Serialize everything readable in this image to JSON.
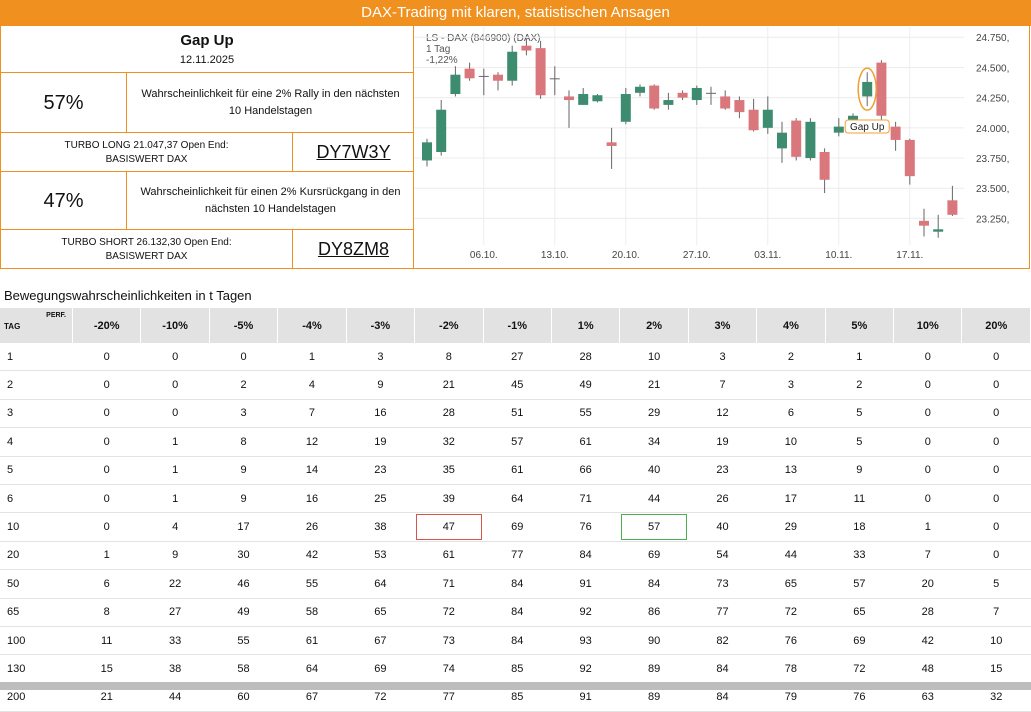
{
  "banner": "DAX-Trading mit klaren, statistischen Ansagen",
  "signal": {
    "title": "Gap Up",
    "date": "12.11.2025",
    "long": {
      "probability": "57%",
      "text": [
        "Wahrscheinlichkeit für eine 2% Rally in den nächsten",
        "10 Handelstagen"
      ],
      "product": [
        "TURBO LONG 21.047,37 Open End:",
        "BASISWERT DAX"
      ],
      "wkn": "DY7W3Y"
    },
    "short": {
      "probability": "47%",
      "text": [
        "Wahrscheinlichkeit für einen 2% Kursrückgang in den",
        "nächsten 10 Handelstagen"
      ],
      "product": [
        "TURBO SHORT 26.132,30 Open End:",
        "BASISWERT DAX"
      ],
      "wkn": "DY8ZM8"
    }
  },
  "chart_data": {
    "type": "candlestick",
    "title": "LS - DAX (846900) (DAX)",
    "subtitle": "1 Tag",
    "change": "-1,22%",
    "annotation": "Gap Up",
    "categories": [
      null,
      null,
      null,
      null,
      "06.10.",
      null,
      null,
      null,
      null,
      "13.10.",
      null,
      null,
      null,
      null,
      "20.10.",
      null,
      null,
      null,
      null,
      "27.10.",
      null,
      null,
      null,
      null,
      "03.11.",
      null,
      null,
      null,
      null,
      "10.11.",
      null,
      null,
      null,
      null,
      "17.11.",
      null,
      null,
      null
    ],
    "open": [
      23730,
      23800,
      24280,
      24490,
      24430,
      24440,
      24390,
      24680,
      24660,
      24410,
      24260,
      24190,
      24220,
      23880,
      24050,
      24290,
      24350,
      24190,
      24290,
      24230,
      24290,
      24260,
      24230,
      24150,
      24000,
      23830,
      24060,
      23750,
      23800,
      23960,
      24060,
      24260,
      24540,
      24010,
      23900,
      23230,
      23140,
      23400
    ],
    "high": [
      23910,
      24230,
      24510,
      24540,
      24490,
      24460,
      24680,
      24740,
      24720,
      24510,
      24310,
      24330,
      24280,
      24000,
      24330,
      24360,
      24360,
      24290,
      24310,
      24350,
      24340,
      24310,
      24260,
      24240,
      24260,
      24050,
      24080,
      24080,
      23830,
      24080,
      24120,
      24460,
      24560,
      24050,
      23910,
      23330,
      23280,
      23520
    ],
    "low": [
      23680,
      23770,
      24260,
      24390,
      24270,
      24310,
      24350,
      24600,
      24240,
      24270,
      24000,
      24190,
      24210,
      23660,
      24030,
      24260,
      24150,
      24150,
      24230,
      24190,
      24190,
      24150,
      24080,
      23970,
      23950,
      23710,
      23730,
      23730,
      23460,
      23930,
      24040,
      24180,
      24060,
      23810,
      23530,
      23100,
      23090,
      23270
    ],
    "close": [
      23880,
      24150,
      24440,
      24410,
      24430,
      24390,
      24630,
      24640,
      24270,
      24410,
      24230,
      24280,
      24270,
      23850,
      24280,
      24340,
      24160,
      24230,
      24250,
      24330,
      24290,
      24160,
      24130,
      23980,
      24150,
      23960,
      23760,
      24050,
      23570,
      24010,
      24100,
      24380,
      24100,
      23900,
      23600,
      23190,
      23160,
      23280
    ],
    "up_color": "#3d8c6f",
    "down_color": "#d9777d",
    "wick_color": "#666666",
    "ylim": [
      23030,
      24810
    ],
    "yticks": [
      {
        "value": 23250,
        "label": "23.250,"
      },
      {
        "value": 23500,
        "label": "23.500,"
      },
      {
        "value": 23750,
        "label": "23.750,"
      },
      {
        "value": 24000,
        "label": "24.000,"
      },
      {
        "value": 24250,
        "label": "24.250,"
      },
      {
        "value": 24500,
        "label": "24.500,"
      },
      {
        "value": 24750,
        "label": "24.750,"
      }
    ],
    "grid": true
  },
  "table": {
    "title": "Bewegungswahrscheinlichkeiten in t Tagen",
    "corner": [
      "PERF.",
      "TAG"
    ],
    "columns": [
      "-20%",
      "-10%",
      "-5%",
      "-4%",
      "-3%",
      "-2%",
      "-1%",
      "1%",
      "2%",
      "3%",
      "4%",
      "5%",
      "10%",
      "20%"
    ],
    "rows": [
      [
        1,
        0,
        0,
        0,
        1,
        3,
        8,
        27,
        28,
        10,
        3,
        2,
        1,
        0,
        0
      ],
      [
        2,
        0,
        0,
        2,
        4,
        9,
        21,
        45,
        49,
        21,
        7,
        3,
        2,
        0,
        0
      ],
      [
        3,
        0,
        0,
        3,
        7,
        16,
        28,
        51,
        55,
        29,
        12,
        6,
        5,
        0,
        0
      ],
      [
        4,
        0,
        1,
        8,
        12,
        19,
        32,
        57,
        61,
        34,
        19,
        10,
        5,
        0,
        0
      ],
      [
        5,
        0,
        1,
        9,
        14,
        23,
        35,
        61,
        66,
        40,
        23,
        13,
        9,
        0,
        0
      ],
      [
        6,
        0,
        1,
        9,
        16,
        25,
        39,
        64,
        71,
        44,
        26,
        17,
        11,
        0,
        0
      ],
      [
        10,
        0,
        4,
        17,
        26,
        38,
        47,
        69,
        76,
        57,
        40,
        29,
        18,
        1,
        0
      ],
      [
        20,
        1,
        9,
        30,
        42,
        53,
        61,
        77,
        84,
        69,
        54,
        44,
        33,
        7,
        0
      ],
      [
        50,
        6,
        22,
        46,
        55,
        64,
        71,
        84,
        91,
        84,
        73,
        65,
        57,
        20,
        5
      ],
      [
        65,
        8,
        27,
        49,
        58,
        65,
        72,
        84,
        92,
        86,
        77,
        72,
        65,
        28,
        7
      ],
      [
        100,
        11,
        33,
        55,
        61,
        67,
        73,
        84,
        93,
        90,
        82,
        76,
        69,
        42,
        10
      ],
      [
        130,
        15,
        38,
        58,
        64,
        69,
        74,
        85,
        92,
        89,
        84,
        78,
        72,
        48,
        15
      ],
      [
        200,
        21,
        44,
        60,
        67,
        72,
        77,
        85,
        91,
        89,
        84,
        79,
        76,
        63,
        32
      ]
    ]
  }
}
